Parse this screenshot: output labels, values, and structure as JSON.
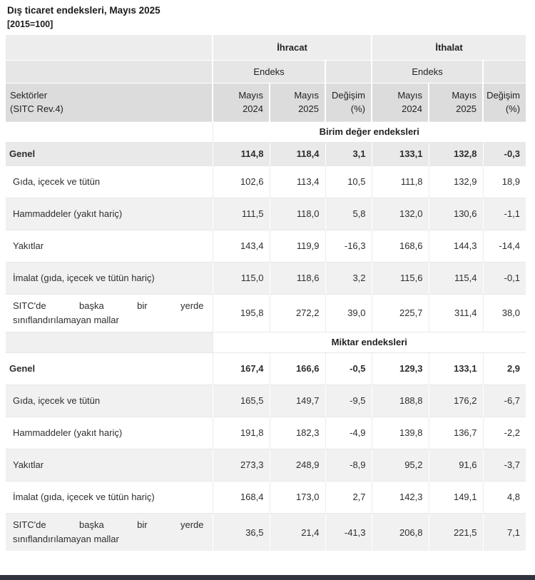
{
  "page": {
    "title": "Dış ticaret endeksleri, Mayıs 2025",
    "subtitle": "[2015=100]"
  },
  "colors": {
    "bottom_bar": "#31343e",
    "header_dark": "#dcdcdc",
    "header_light": "#ededed",
    "stripe": "#f1f1f1",
    "total_row_stripe": "#e9e9e9"
  },
  "chart_data": {
    "type": "table",
    "title": "Dış ticaret endeksleri, Mayıs 2025",
    "subtitle": "[2015=100]",
    "groups": [
      "İhracat",
      "İthalat"
    ],
    "index_label": "Endeks",
    "row_header_lines": [
      "Sektörler",
      "(SITC Rev.4)"
    ],
    "columns": [
      {
        "l1": "Mayıs",
        "l2": "2024"
      },
      {
        "l1": "Mayıs",
        "l2": "2025"
      },
      {
        "l1": "Değişim",
        "l2": "(%)"
      },
      {
        "l1": "Mayıs",
        "l2": "2024"
      },
      {
        "l1": "Mayıs",
        "l2": "2025"
      },
      {
        "l1": "Değişim",
        "l2": "(%)"
      }
    ],
    "sections": [
      {
        "title": "Birim değer endeksleri",
        "rows": [
          {
            "label": "Genel",
            "values": [
              114.8,
              118.4,
              3.1,
              133.1,
              132.8,
              -0.3
            ]
          },
          {
            "label": "Gıda, içecek ve tütün",
            "values": [
              102.6,
              113.4,
              10.5,
              111.8,
              132.9,
              18.9
            ]
          },
          {
            "label": "Hammaddeler (yakıt hariç)",
            "values": [
              111.5,
              118.0,
              5.8,
              132.0,
              130.6,
              -1.1
            ]
          },
          {
            "label": "Yakıtlar",
            "values": [
              143.4,
              119.9,
              -16.3,
              168.6,
              144.3,
              -14.4
            ]
          },
          {
            "label": "İmalat (gıda, içecek ve tütün hariç)",
            "values": [
              115.0,
              118.6,
              3.2,
              115.6,
              115.4,
              -0.1
            ]
          },
          {
            "label_lines": [
              "SITC'de başka bir yerde",
              "sınıflandırılamayan mallar"
            ],
            "values": [
              195.8,
              272.2,
              39.0,
              225.7,
              311.4,
              38.0
            ]
          }
        ]
      },
      {
        "title": "Miktar endeksleri",
        "rows": [
          {
            "label": "Genel",
            "values": [
              167.4,
              166.6,
              -0.5,
              129.3,
              133.1,
              2.9
            ]
          },
          {
            "label": "Gıda, içecek ve tütün",
            "values": [
              165.5,
              149.7,
              -9.5,
              188.8,
              176.2,
              -6.7
            ]
          },
          {
            "label": "Hammaddeler (yakıt hariç)",
            "values": [
              191.8,
              182.3,
              -4.9,
              139.8,
              136.7,
              -2.2
            ]
          },
          {
            "label": "Yakıtlar",
            "values": [
              273.3,
              248.9,
              -8.9,
              95.2,
              91.6,
              -3.7
            ]
          },
          {
            "label": "İmalat (gıda, içecek ve tütün hariç)",
            "values": [
              168.4,
              173.0,
              2.7,
              142.3,
              149.1,
              4.8
            ]
          },
          {
            "label_lines": [
              "SITC'de başka bir yerde",
              "sınıflandırılamayan mallar"
            ],
            "values": [
              36.5,
              21.4,
              -41.3,
              206.8,
              221.5,
              7.1
            ]
          }
        ]
      }
    ]
  }
}
